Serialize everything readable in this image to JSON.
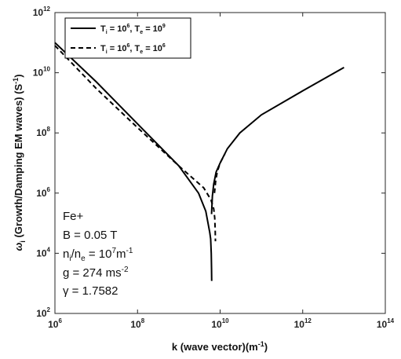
{
  "chart_data": {
    "type": "line",
    "title": "",
    "xscale": "log",
    "yscale": "log",
    "xlim": [
      1000000.0,
      100000000000000.0
    ],
    "ylim": [
      100.0,
      1000000000000.0
    ],
    "xlabel": "k (wave vector)(m",
    "xlabel_exp": "-1",
    "xlabel_end": ")",
    "ylabel_prefix": "ω",
    "ylabel_sub": "i",
    "ylabel": " (Growth/Damping EM waves) (S",
    "ylabel_exp": "-1",
    "ylabel_end": ")",
    "x_ticks": [
      {
        "base": "10",
        "exp": "6",
        "value": 1000000.0
      },
      {
        "base": "10",
        "exp": "8",
        "value": 100000000.0
      },
      {
        "base": "10",
        "exp": "10",
        "value": 10000000000.0
      },
      {
        "base": "10",
        "exp": "12",
        "value": 1000000000000.0
      },
      {
        "base": "10",
        "exp": "14",
        "value": 100000000000000.0
      }
    ],
    "y_ticks": [
      {
        "base": "10",
        "exp": "2",
        "value": 100.0
      },
      {
        "base": "10",
        "exp": "4",
        "value": 10000.0
      },
      {
        "base": "10",
        "exp": "6",
        "value": 1000000.0
      },
      {
        "base": "10",
        "exp": "8",
        "value": 100000000.0
      },
      {
        "base": "10",
        "exp": "10",
        "value": 10000000000.0
      },
      {
        "base": "10",
        "exp": "12",
        "value": 1000000000000.0
      }
    ],
    "grid": false,
    "legend_position": "top-left",
    "series": [
      {
        "style": "solid",
        "color": "#000000",
        "legend": {
          "T": "T",
          "i": "i",
          "e": "e",
          "eq": " = 10",
          "ti_exp": "6",
          "te_exp": "9",
          "sep": ", "
        },
        "x": [
          1000000.0,
          10000000.0,
          100000000.0,
          1000000000.0,
          3000000000.0,
          4500000000.0,
          5600000000.0,
          5900000000.0,
          6100000000.0,
          6200000000.0,
          6250000000.0
        ],
        "y": [
          100000000000.0,
          5000000000.0,
          200000000.0,
          8000000.0,
          1000000.0,
          250000.0,
          50000.0,
          30000.0,
          10000.0,
          3000.0,
          1200.0
        ],
        "x2": [
          6200000000.0,
          6500000000.0,
          7000000000.0,
          8000000000.0,
          10000000000.0,
          15000000000.0,
          30000000000.0,
          100000000000.0,
          1000000000000.0,
          10000000000000.0
        ],
        "y2": [
          200000.0,
          800000.0,
          2000000.0,
          5000000.0,
          10000000.0,
          30000000.0,
          100000000.0,
          400000000.0,
          2500000000.0,
          15000000000.0
        ]
      },
      {
        "style": "dashed",
        "color": "#000000",
        "legend": {
          "T": "T",
          "i": "i",
          "e": "e",
          "eq": " = 10",
          "ti_exp": "6",
          "te_exp": "6",
          "sep": ", "
        },
        "x": [
          1000000.0,
          10000000.0,
          100000000.0,
          1000000000.0,
          4000000000.0,
          6000000000.0,
          7000000000.0,
          7400000000.0,
          7600000000.0,
          7700000000.0
        ],
        "y": [
          80000000000.0,
          3000000000.0,
          150000000.0,
          8000000.0,
          1500000.0,
          600000.0,
          300000.0,
          150000.0,
          60000.0,
          25000.0
        ],
        "x2": [
          7300000000.0,
          7800000000.0,
          8500000000.0,
          10000000000.0,
          13000000000.0
        ],
        "y2": [
          1000000.0,
          2500000.0,
          5000000.0,
          10000000.0,
          20000000.0
        ]
      }
    ],
    "annotations": {
      "ion": "Fe+",
      "b_field": "B = 0.05 T",
      "density_n1": "n",
      "density_i": "i",
      "density_slash": "/n",
      "density_e": "e",
      "density_eq": " = 10",
      "density_exp": "7",
      "density_unit": "m",
      "density_unit_exp": "-1",
      "gravity": "g = 274 ms",
      "gravity_exp": "-2",
      "gamma": "γ = 1.7582"
    }
  }
}
